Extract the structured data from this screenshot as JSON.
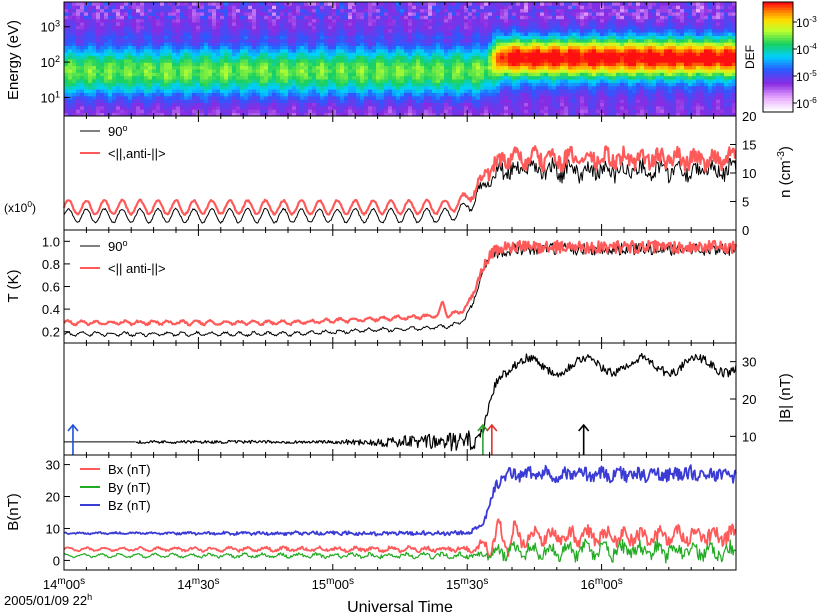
{
  "figure": {
    "xlabel": "Universal Time",
    "date_label": "2005/01/09 22",
    "date_hour_sup": "h",
    "x_ticks": [
      {
        "t": 0,
        "min": "14",
        "sec": "00"
      },
      {
        "t": 30,
        "min": "14",
        "sec": "30"
      },
      {
        "t": 60,
        "min": "15",
        "sec": "00"
      },
      {
        "t": 90,
        "min": "15",
        "sec": "30"
      },
      {
        "t": 120,
        "min": "16",
        "sec": "00"
      }
    ],
    "min_sup": "m",
    "sec_sup": "s"
  },
  "colors": {
    "black": "#000000",
    "red": "#ff5a5a",
    "green": "#22aa22",
    "blue": "#3b3bd6",
    "arrow_blue": "#1d4fd8",
    "arrow_green": "#2fa02f",
    "arrow_red": "#e53030"
  },
  "chart_data": [
    {
      "type": "heatmap",
      "panel": "energy",
      "ylabel": "Energy (eV)",
      "y_log": true,
      "ylim_eV": [
        3,
        5000
      ],
      "y_ticks": [
        {
          "v": 10,
          "label": "10",
          "sup": "1"
        },
        {
          "v": 100,
          "label": "10",
          "sup": "2"
        },
        {
          "v": 1000,
          "label": "10",
          "sup": "3"
        }
      ],
      "colorbar": {
        "label": "DEF",
        "ticks": [
          {
            "label": "10",
            "sup": "-3"
          },
          {
            "label": "10",
            "sup": "-4"
          },
          {
            "label": "10",
            "sup": "-5"
          },
          {
            "label": "10",
            "sup": "-6"
          }
        ]
      },
      "transition_time_s": 96
    },
    {
      "type": "line",
      "panel": "density",
      "ylabel": "n (cm",
      "ylabel_sup": "-3",
      "ylabel_end": ")",
      "left_note": "(x10",
      "left_note_sup": "0",
      "left_note_end": ")",
      "ylim": [
        0,
        20
      ],
      "y_ticks": [
        0,
        5,
        10,
        15,
        20
      ],
      "series": [
        {
          "name": "90",
          "name_sup": "o",
          "color": "black",
          "base_before": 2.5,
          "base_after": 10.5,
          "amp": 1.2
        },
        {
          "name": "<||,anti-||>",
          "color": "red",
          "base_before": 4.0,
          "base_after": 12.5,
          "amp": 1.2
        }
      ]
    },
    {
      "type": "line",
      "panel": "temperature",
      "ylabel": "T (K)",
      "ylim": [
        0.1,
        1.1
      ],
      "y_ticks": [
        0.2,
        0.4,
        0.6,
        0.8,
        1.0
      ],
      "y_tick_labels": [
        "0.2",
        "0.4",
        "0.6",
        "0.8",
        "1.0"
      ],
      "series": [
        {
          "name": "90",
          "name_sup": "o",
          "color": "black",
          "base_before": 0.18,
          "base_after": 0.93
        },
        {
          "name": "<|| anti-||>",
          "color": "red",
          "base_before": 0.28,
          "base_after": 0.95
        }
      ]
    },
    {
      "type": "line",
      "panel": "bmag",
      "ylabel": "|B| (nT)",
      "ylim": [
        5,
        35
      ],
      "y_ticks": [
        10,
        20,
        30
      ],
      "series": [
        {
          "name": "|B|",
          "color": "black",
          "base_before": 8.5,
          "base_after": 29
        }
      ],
      "arrows": [
        {
          "t": 2,
          "color": "arrow_blue"
        },
        {
          "t": 93.5,
          "color": "arrow_green"
        },
        {
          "t": 95.5,
          "color": "arrow_red"
        },
        {
          "t": 116,
          "color": "black"
        }
      ]
    },
    {
      "type": "line",
      "panel": "bcomp",
      "ylabel": "B(nT)",
      "ylim": [
        -3,
        33
      ],
      "y_ticks": [
        0,
        10,
        20,
        30
      ],
      "series": [
        {
          "name": "Bx (nT)",
          "color": "red",
          "base_before": 3.5,
          "base_after": 7.5
        },
        {
          "name": "By (nT)",
          "color": "green",
          "base_before": 1.5,
          "base_after": 3.0
        },
        {
          "name": "Bz (nT)",
          "color": "blue",
          "base_before": 8.5,
          "base_after": 27
        }
      ]
    }
  ]
}
